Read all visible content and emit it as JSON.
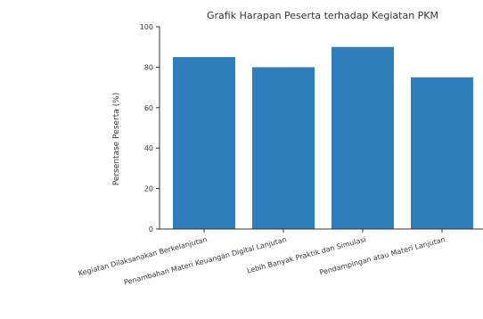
{
  "chart_data": {
    "type": "bar",
    "title": "Grafik Harapan Peserta terhadap Kegiatan PKM",
    "xlabel": "",
    "ylabel": "Persentase Peserta (%)",
    "categories": [
      "Kegiatan Dilaksanakan Berkelanjutan",
      "Penambahan Materi Keuangan Digital Lanjutan",
      "Lebih Banyak Praktik dan Simulasi",
      "Pendampingan atau Materi Lanjutan"
    ],
    "values": [
      85,
      80,
      90,
      75
    ],
    "ylim": [
      0,
      100
    ],
    "yticks": [
      0,
      20,
      40,
      60,
      80,
      100
    ],
    "bar_color": "#2f7ebc",
    "grid": false,
    "legend": "none"
  }
}
